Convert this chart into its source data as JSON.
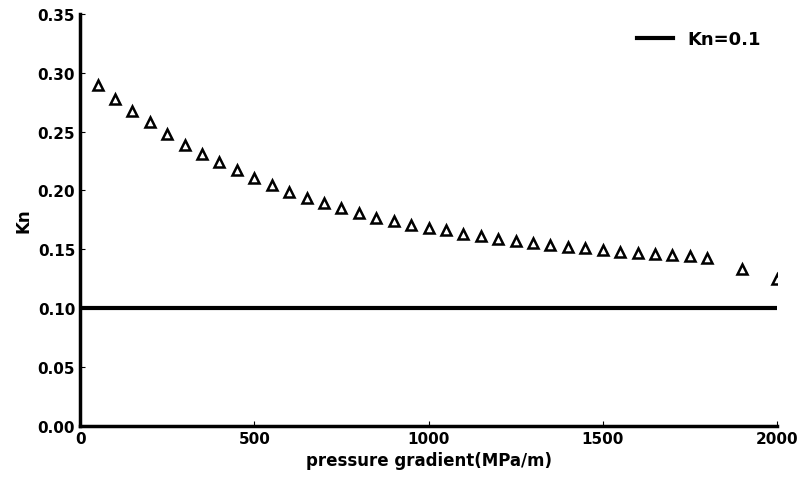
{
  "title": "",
  "xlabel": "pressure gradient(MPa/m)",
  "ylabel": "Kn",
  "xlim": [
    0,
    2000
  ],
  "ylim": [
    0.0,
    0.35
  ],
  "yticks": [
    0.0,
    0.05,
    0.1,
    0.15,
    0.2,
    0.25,
    0.3,
    0.35
  ],
  "xticks": [
    0,
    500,
    1000,
    1500,
    2000
  ],
  "horizontal_line_y": 0.1,
  "legend_label": "Kn=0.1",
  "line_color": "#000000",
  "marker_color": "#000000",
  "background_color": "#ffffff",
  "triangle_x": [
    50,
    100,
    150,
    200,
    250,
    300,
    350,
    400,
    450,
    500,
    550,
    600,
    650,
    700,
    750,
    800,
    850,
    900,
    950,
    1000,
    1050,
    1100,
    1150,
    1200,
    1250,
    1300,
    1350,
    1400,
    1450,
    1500,
    1550,
    1600,
    1650,
    1700,
    1750,
    1800,
    1900,
    2000
  ],
  "triangle_y": [
    0.29,
    0.278,
    0.268,
    0.258,
    0.248,
    0.239,
    0.231,
    0.224,
    0.217,
    0.211,
    0.205,
    0.199,
    0.194,
    0.189,
    0.185,
    0.181,
    0.177,
    0.174,
    0.171,
    0.168,
    0.166,
    0.163,
    0.161,
    0.159,
    0.157,
    0.155,
    0.154,
    0.152,
    0.151,
    0.149,
    0.148,
    0.147,
    0.146,
    0.145,
    0.144,
    0.143,
    0.133,
    0.125
  ],
  "marker_size": 7,
  "line_width": 3.0,
  "tick_fontsize": 11,
  "label_fontsize": 12,
  "legend_fontsize": 13
}
